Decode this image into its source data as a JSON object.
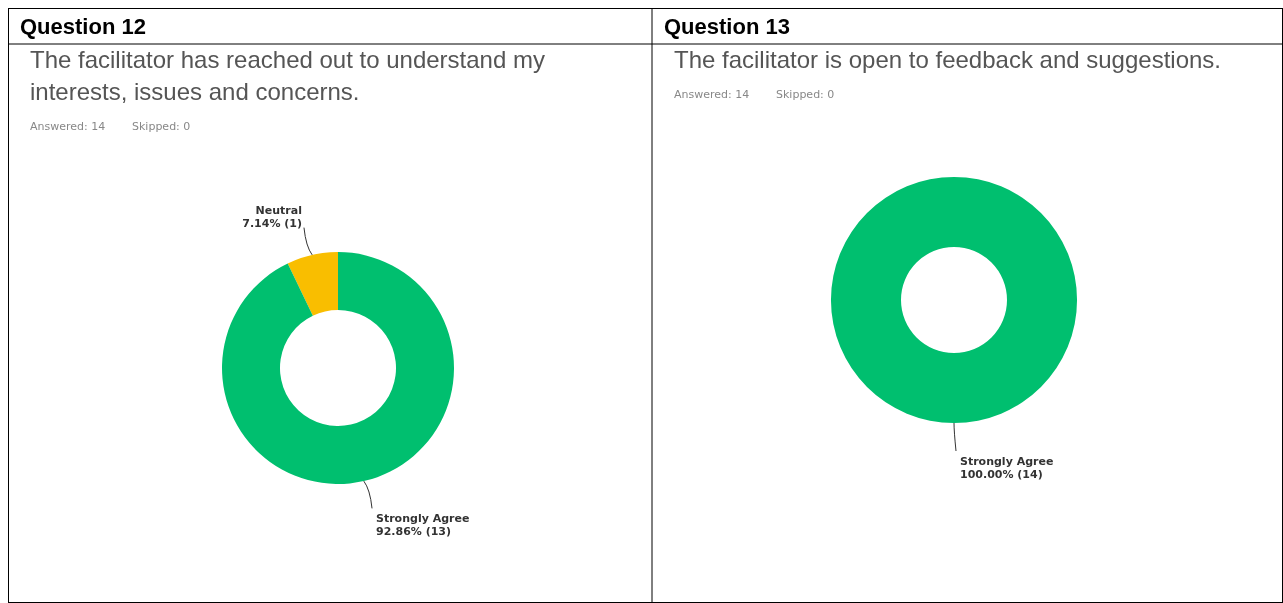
{
  "chart_data": [
    {
      "type": "donut",
      "title": "Question 12",
      "subtitle": "The facilitator has reached out to understand my interests, issues and concerns.",
      "annotations": [
        "Answered: 14",
        "Skipped: 0"
      ],
      "categories": [
        "Neutral",
        "Strongly Agree"
      ],
      "values": [
        7.14,
        92.86
      ],
      "value_labels": [
        "7.14% (1)",
        "92.86% (13)"
      ],
      "colors": [
        "#f9be00",
        "#00bf6f"
      ]
    },
    {
      "type": "donut",
      "title": "Question 13",
      "subtitle": "The facilitator is open to feedback and suggestions.",
      "annotations": [
        "Answered: 14",
        "Skipped: 0"
      ],
      "categories": [
        "Strongly Agree"
      ],
      "values": [
        100.0
      ],
      "value_labels": [
        "100.00% (14)"
      ],
      "colors": [
        "#00bf6f"
      ]
    }
  ]
}
